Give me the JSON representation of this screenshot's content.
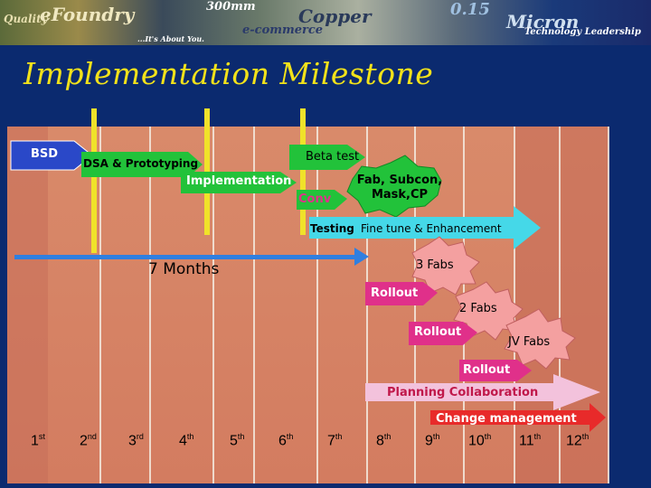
{
  "banner": {
    "text_quality": "Quality",
    "text_efoundry": "eFoundry",
    "text_300mm": "300mm",
    "text_ecommerce": "e-commerce",
    "text_tagline": "...It's About You.",
    "text_copper": "Copper",
    "text_micron": "Micron",
    "text_015": "0.15",
    "text_leadership": "Technology Leadership"
  },
  "title": "Implementation Milestone",
  "milestones": {
    "bsd": "BSD",
    "dsa": "DSA & Prototyping",
    "implementation": "Implementation",
    "beta": "Beta test",
    "fab": "Fab, Subcon, Mask,CP",
    "conv": "Conv",
    "testing": "Testing",
    "finetune": "Fine tune & Enhancement",
    "months": "7 Months",
    "fabs3": "3 Fabs",
    "rollout1": "Rollout",
    "fabs2": "2 Fabs",
    "rollout2": "Rollout",
    "jvfabs": "JV Fabs",
    "rollout3": "Rollout",
    "planning": "Planning Collaboration",
    "change": "Change management"
  },
  "timeline": [
    {
      "n": "1",
      "s": "st"
    },
    {
      "n": "2",
      "s": "nd"
    },
    {
      "n": "3",
      "s": "rd"
    },
    {
      "n": "4",
      "s": "th"
    },
    {
      "n": "5",
      "s": "th"
    },
    {
      "n": "6",
      "s": "th"
    },
    {
      "n": "7",
      "s": "th"
    },
    {
      "n": "8",
      "s": "th"
    },
    {
      "n": "9",
      "s": "th"
    },
    {
      "n": "10",
      "s": "th"
    },
    {
      "n": "11",
      "s": "th"
    },
    {
      "n": "12",
      "s": "th"
    }
  ],
  "colors": {
    "background": "#0b2a6f",
    "panel": "#d98a6a",
    "title": "#f2e21a",
    "green": "#22c23a",
    "yellow": "#f0e22a",
    "cyan": "#45d8e8",
    "pink": "#f4a0a0",
    "magenta": "#e0308a",
    "blue_arrow": "#2f7fe0"
  }
}
